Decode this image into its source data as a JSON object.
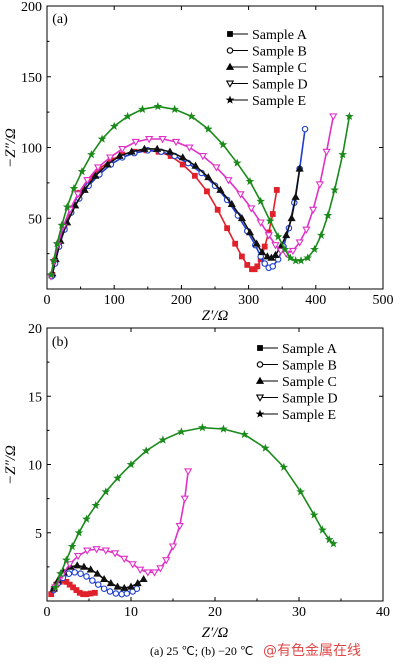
{
  "chart_data": [
    {
      "type": "scatter",
      "panel_label": "(a)",
      "xlabel": "Z′/Ω",
      "ylabel": "−Z″/Ω",
      "xlim": [
        0,
        500
      ],
      "ylim": [
        0,
        200
      ],
      "xticks": [
        0,
        100,
        200,
        300,
        400,
        500
      ],
      "yticks": [
        50,
        100,
        150,
        200
      ],
      "xtick_labels": [
        "0",
        "100",
        "200",
        "300",
        "400",
        "500"
      ],
      "ytick_labels": [
        "50",
        "100",
        "150",
        "200"
      ],
      "legend_position": "top-right",
      "series": [
        {
          "name": "Sample A",
          "marker": "square",
          "color": "#e0212b",
          "x": [
            8,
            12,
            18,
            26,
            36,
            48,
            62,
            78,
            95,
            112,
            130,
            148,
            166,
            184,
            202,
            220,
            238,
            254,
            268,
            280,
            290,
            298,
            305,
            309,
            313,
            318,
            324,
            330,
            336,
            342
          ],
          "y": [
            10,
            20,
            32,
            45,
            57,
            68,
            77,
            85,
            91,
            95,
            97,
            98,
            97,
            94,
            88,
            80,
            69,
            56,
            43,
            32,
            23,
            17,
            14,
            14,
            16,
            21,
            30,
            40,
            53,
            70
          ]
        },
        {
          "name": "Sample B",
          "marker": "circle",
          "color": "#1f3fd0",
          "x": [
            7,
            12,
            18,
            26,
            36,
            48,
            62,
            78,
            95,
            112,
            130,
            150,
            170,
            190,
            210,
            230,
            250,
            268,
            284,
            298,
            310,
            318,
            324,
            330,
            336,
            344,
            352,
            360,
            368,
            376,
            384
          ],
          "y": [
            9,
            18,
            30,
            42,
            54,
            64,
            73,
            81,
            88,
            93,
            96,
            98,
            97,
            94,
            89,
            82,
            73,
            63,
            52,
            41,
            31,
            23,
            18,
            15,
            16,
            21,
            30,
            43,
            61,
            85,
            113
          ]
        },
        {
          "name": "Sample C",
          "marker": "triangle-up",
          "color": "#111111",
          "x": [
            8,
            13,
            20,
            30,
            42,
            56,
            72,
            90,
            108,
            126,
            145,
            164,
            183,
            202,
            221,
            240,
            258,
            275,
            290,
            302,
            312,
            320,
            328,
            334,
            340,
            348,
            356,
            364,
            370,
            376
          ],
          "y": [
            11,
            21,
            34,
            47,
            59,
            70,
            80,
            88,
            94,
            97,
            99,
            99,
            97,
            93,
            87,
            79,
            70,
            60,
            50,
            40,
            32,
            26,
            23,
            22,
            24,
            30,
            38,
            50,
            65,
            85
          ]
        },
        {
          "name": "Sample D",
          "marker": "triangle-down",
          "color": "#e030c8",
          "x": [
            6,
            10,
            16,
            24,
            34,
            46,
            60,
            76,
            94,
            112,
            132,
            152,
            172,
            192,
            212,
            232,
            252,
            270,
            288,
            304,
            318,
            330,
            340,
            348,
            356,
            366,
            376,
            386,
            396,
            406,
            416,
            426
          ],
          "y": [
            9,
            19,
            31,
            44,
            56,
            67,
            77,
            86,
            93,
            99,
            104,
            106,
            106,
            104,
            100,
            94,
            86,
            77,
            67,
            57,
            47,
            38,
            31,
            27,
            25,
            27,
            33,
            42,
            56,
            74,
            97,
            122
          ]
        },
        {
          "name": "Sample E",
          "marker": "star",
          "color": "#1a8a1a",
          "x": [
            6,
            10,
            15,
            22,
            30,
            40,
            52,
            66,
            82,
            100,
            120,
            142,
            165,
            190,
            215,
            240,
            262,
            283,
            302,
            318,
            332,
            344,
            354,
            362,
            370,
            378,
            388,
            398,
            408,
            418,
            428,
            440,
            450
          ],
          "y": [
            10,
            20,
            32,
            45,
            58,
            71,
            83,
            95,
            106,
            115,
            122,
            127,
            129,
            127,
            122,
            113,
            102,
            89,
            76,
            62,
            48,
            37,
            28,
            22,
            20,
            20,
            22,
            28,
            38,
            52,
            70,
            95,
            122
          ]
        }
      ]
    },
    {
      "type": "scatter",
      "panel_label": "(b)",
      "xlabel": "Z′/Ω",
      "ylabel": "−Z″/Ω",
      "xlim": [
        0,
        40
      ],
      "ylim": [
        0,
        20
      ],
      "xticks": [
        0,
        10,
        20,
        30,
        40
      ],
      "yticks": [
        5,
        10,
        15,
        20
      ],
      "xtick_labels": [
        "0",
        "10",
        "20",
        "30",
        "40"
      ],
      "ytick_labels": [
        "5",
        "10",
        "15",
        "20"
      ],
      "legend_position": "top-right",
      "series": [
        {
          "name": "Sample A",
          "marker": "square",
          "color": "#e0212b",
          "x": [
            0.5,
            0.8,
            1.1,
            1.5,
            1.9,
            2.3,
            2.7,
            3.1,
            3.5,
            3.9,
            4.3,
            4.7,
            5.2,
            5.7
          ],
          "y": [
            0.5,
            0.9,
            1.2,
            1.4,
            1.5,
            1.4,
            1.2,
            1.0,
            0.8,
            0.6,
            0.5,
            0.5,
            0.55,
            0.6
          ]
        },
        {
          "name": "Sample B",
          "marker": "circle",
          "color": "#1f3fd0",
          "x": [
            0.8,
            1.3,
            1.9,
            2.6,
            3.3,
            4.0,
            4.7,
            5.4,
            6.1,
            6.8,
            7.5,
            8.2,
            8.9,
            9.5,
            10.2,
            10.7
          ],
          "y": [
            0.8,
            1.3,
            1.7,
            2.0,
            2.1,
            2.0,
            1.8,
            1.5,
            1.2,
            0.9,
            0.7,
            0.55,
            0.5,
            0.55,
            0.7,
            0.9
          ]
        },
        {
          "name": "Sample C",
          "marker": "triangle-up",
          "color": "#111111",
          "x": [
            0.8,
            1.3,
            2.0,
            2.8,
            3.6,
            4.4,
            5.2,
            6.0,
            6.8,
            7.6,
            8.4,
            9.2,
            10.0,
            10.8,
            11.5
          ],
          "y": [
            0.9,
            1.5,
            2.1,
            2.5,
            2.6,
            2.5,
            2.3,
            2.0,
            1.6,
            1.3,
            1.05,
            0.95,
            1.05,
            1.3,
            1.6
          ]
        },
        {
          "name": "Sample D",
          "marker": "triangle-down",
          "color": "#e030c8",
          "x": [
            1.0,
            1.8,
            2.7,
            3.7,
            4.8,
            5.9,
            7.0,
            8.1,
            9.2,
            10.2,
            11.1,
            12.0,
            12.8,
            13.5,
            14.2,
            15.0,
            15.8,
            16.4,
            16.8
          ],
          "y": [
            1.0,
            1.9,
            2.7,
            3.3,
            3.7,
            3.8,
            3.7,
            3.5,
            3.1,
            2.7,
            2.3,
            2.1,
            2.1,
            2.4,
            3.0,
            4.0,
            5.5,
            7.5,
            9.5
          ]
        },
        {
          "name": "Sample E",
          "marker": "star",
          "color": "#1a8a1a",
          "x": [
            1.0,
            1.6,
            2.3,
            3.0,
            3.8,
            4.7,
            5.8,
            7.0,
            8.4,
            10.0,
            11.8,
            13.8,
            16.0,
            18.5,
            21.0,
            23.5,
            26.0,
            28.2,
            30.2,
            31.8,
            32.8,
            33.6,
            34.1
          ],
          "y": [
            1.0,
            2.0,
            3.0,
            4.0,
            5.0,
            6.0,
            7.0,
            8.0,
            9.0,
            10.0,
            11.0,
            11.8,
            12.4,
            12.7,
            12.6,
            12.2,
            11.2,
            9.8,
            8.0,
            6.3,
            5.2,
            4.5,
            4.2
          ]
        }
      ]
    }
  ],
  "caption": "(a) 25 ℃; (b) −20 ℃",
  "watermark": "@有色金属在线"
}
